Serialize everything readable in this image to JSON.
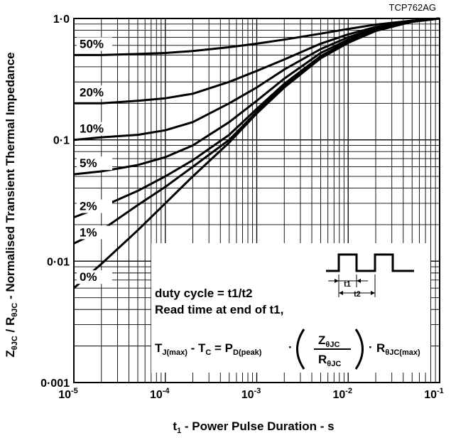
{
  "chart_data": {
    "type": "line",
    "title": "",
    "reference": "TCP762AG",
    "xlabel": {
      "pre": "t",
      "sub": "1",
      "post": " - Power Pulse Duration - s"
    },
    "ylabel": {
      "z": "Z",
      "zsub": "θJC",
      "mid": " / R",
      "rsub": "θJC",
      "post": " - Normalised Transient Thermal Impedance"
    },
    "xscale": "log",
    "yscale": "log",
    "xlim": [
      1e-05,
      0.1
    ],
    "ylim": [
      0.001,
      1.0
    ],
    "grid": true,
    "x_ticks": [
      {
        "base": "10",
        "exp": "-5",
        "value": 1e-05
      },
      {
        "base": "10",
        "exp": "-4",
        "value": 0.0001
      },
      {
        "base": "10",
        "exp": "-3",
        "value": 0.001
      },
      {
        "base": "10",
        "exp": "-2",
        "value": 0.01
      },
      {
        "base": "10",
        "exp": "-1",
        "value": 0.1
      }
    ],
    "y_ticks": [
      {
        "label": "1·0",
        "value": 1.0
      },
      {
        "label": "0·1",
        "value": 0.1
      },
      {
        "label": "0·01",
        "value": 0.01
      },
      {
        "label": "0·001",
        "value": 0.001
      }
    ],
    "x": [
      1e-05,
      2e-05,
      5e-05,
      0.0001,
      0.0002,
      0.0005,
      0.001,
      0.002,
      0.005,
      0.01,
      0.02,
      0.05,
      0.1
    ],
    "series": [
      {
        "name": "50%",
        "values": [
          0.5,
          0.5,
          0.51,
          0.52,
          0.54,
          0.58,
          0.62,
          0.67,
          0.75,
          0.82,
          0.89,
          0.96,
          1.0
        ]
      },
      {
        "name": "20%",
        "values": [
          0.2,
          0.2,
          0.21,
          0.22,
          0.24,
          0.3,
          0.37,
          0.46,
          0.62,
          0.74,
          0.85,
          0.95,
          1.0
        ]
      },
      {
        "name": "10%",
        "values": [
          0.1,
          0.105,
          0.11,
          0.12,
          0.14,
          0.2,
          0.27,
          0.38,
          0.56,
          0.7,
          0.83,
          0.95,
          1.0
        ]
      },
      {
        "name": "5%",
        "values": [
          0.052,
          0.055,
          0.062,
          0.072,
          0.09,
          0.14,
          0.21,
          0.32,
          0.52,
          0.67,
          0.82,
          0.94,
          1.0
        ]
      },
      {
        "name": "2%",
        "values": [
          0.023,
          0.028,
          0.038,
          0.05,
          0.068,
          0.11,
          0.18,
          0.29,
          0.49,
          0.65,
          0.8,
          0.94,
          1.0
        ]
      },
      {
        "name": "1%",
        "values": [
          0.014,
          0.018,
          0.029,
          0.041,
          0.06,
          0.1,
          0.17,
          0.28,
          0.48,
          0.64,
          0.8,
          0.94,
          1.0
        ]
      },
      {
        "name": "0%",
        "values": [
          0.006,
          0.0095,
          0.018,
          0.03,
          0.05,
          0.095,
          0.165,
          0.27,
          0.47,
          0.63,
          0.79,
          0.94,
          1.0
        ]
      }
    ],
    "annotations": {
      "duty_line": "duty cycle = t1/t2",
      "read_line": "Read time at end of t1,",
      "pulse_t1": "t1",
      "pulse_t2": "t2",
      "formula": {
        "t": "T",
        "jmax": "J(max)",
        "minus": " - T",
        "c": "C",
        "eq": " = P",
        "dpeak": "D(peak)",
        "dot": "·",
        "num_z": "Z",
        "num_sub": "θJC",
        "den_r": "R",
        "den_sub": "θJC",
        "r": "R",
        "rsub": "θJC(max)"
      }
    }
  }
}
